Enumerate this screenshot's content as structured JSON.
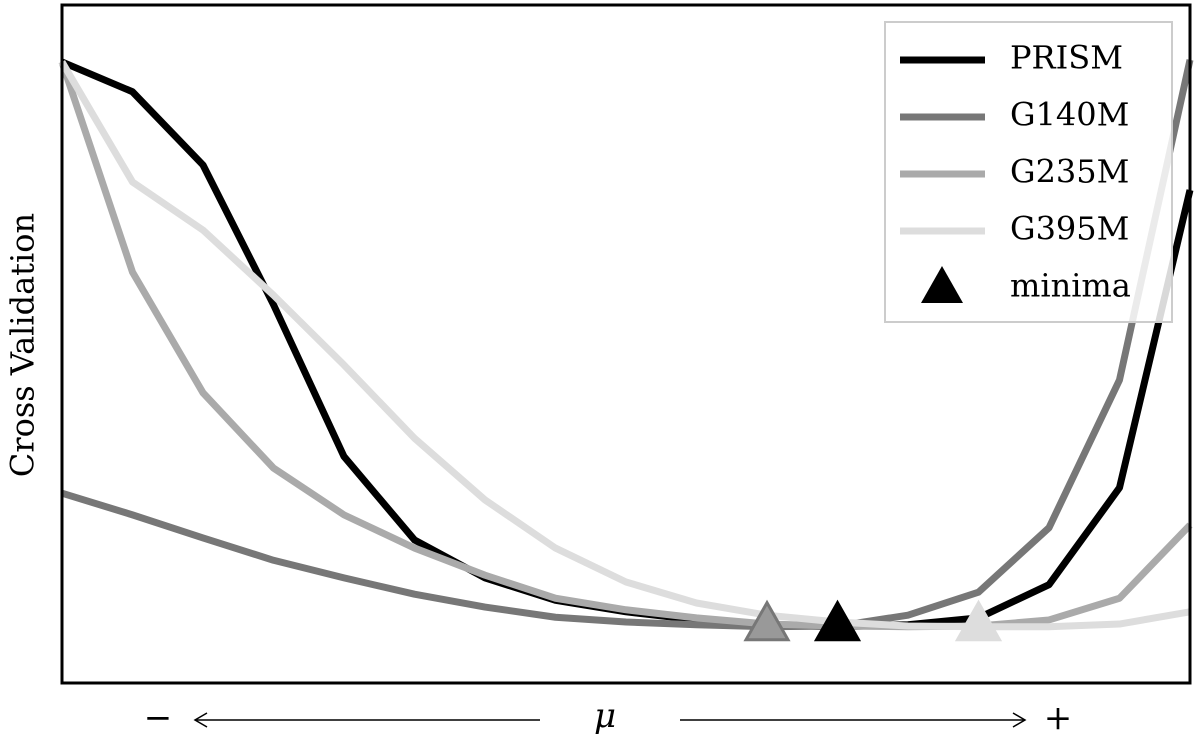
{
  "chart_data": {
    "type": "line",
    "y_label": "Cross Validation",
    "x_label": {
      "minus": "−",
      "symbol": "μ",
      "plus": "+"
    },
    "x": [
      0,
      1,
      2,
      3,
      4,
      5,
      6,
      7,
      8,
      9,
      10,
      11,
      12,
      13,
      14,
      15,
      16
    ],
    "xlim": [
      0,
      16
    ],
    "ylim": [
      0,
      100
    ],
    "legend": "upper right",
    "series": [
      {
        "name": "PRISM",
        "color": "#000000",
        "values": [
          91.6,
          87.2,
          76.4,
          55.8,
          33.4,
          21.1,
          15.5,
          12.2,
          10.5,
          9.3,
          8.6,
          8.3,
          8.6,
          9.6,
          14.5,
          28.8,
          72.7
        ]
      },
      {
        "name": "G140M",
        "color": "#777777",
        "values": [
          28.0,
          24.8,
          21.4,
          18.1,
          15.5,
          13.1,
          11.2,
          9.7,
          9.0,
          8.6,
          8.3,
          8.4,
          10.0,
          13.4,
          22.9,
          44.7,
          91.9
        ]
      },
      {
        "name": "G235M",
        "color": "#aaaaaa",
        "values": [
          91.6,
          60.6,
          42.8,
          31.7,
          24.8,
          19.9,
          15.9,
          12.5,
          10.8,
          9.6,
          8.7,
          8.4,
          8.3,
          8.4,
          9.3,
          12.5,
          23.3
        ]
      },
      {
        "name": "G395M",
        "color": "#dddddd",
        "values": [
          91.6,
          73.9,
          66.8,
          57.2,
          46.9,
          36.1,
          27.0,
          19.9,
          14.9,
          11.8,
          10.0,
          9.0,
          8.4,
          8.3,
          8.3,
          8.7,
          10.5
        ]
      }
    ],
    "minima": {
      "name": "minima",
      "color": "#000000",
      "points": [
        {
          "x": 10,
          "y": 8.3,
          "color": "#999999"
        },
        {
          "x": 11,
          "y": 8.3,
          "color": "#000000"
        },
        {
          "x": 13,
          "y": 8.3,
          "color": "#dddddd"
        }
      ]
    }
  }
}
